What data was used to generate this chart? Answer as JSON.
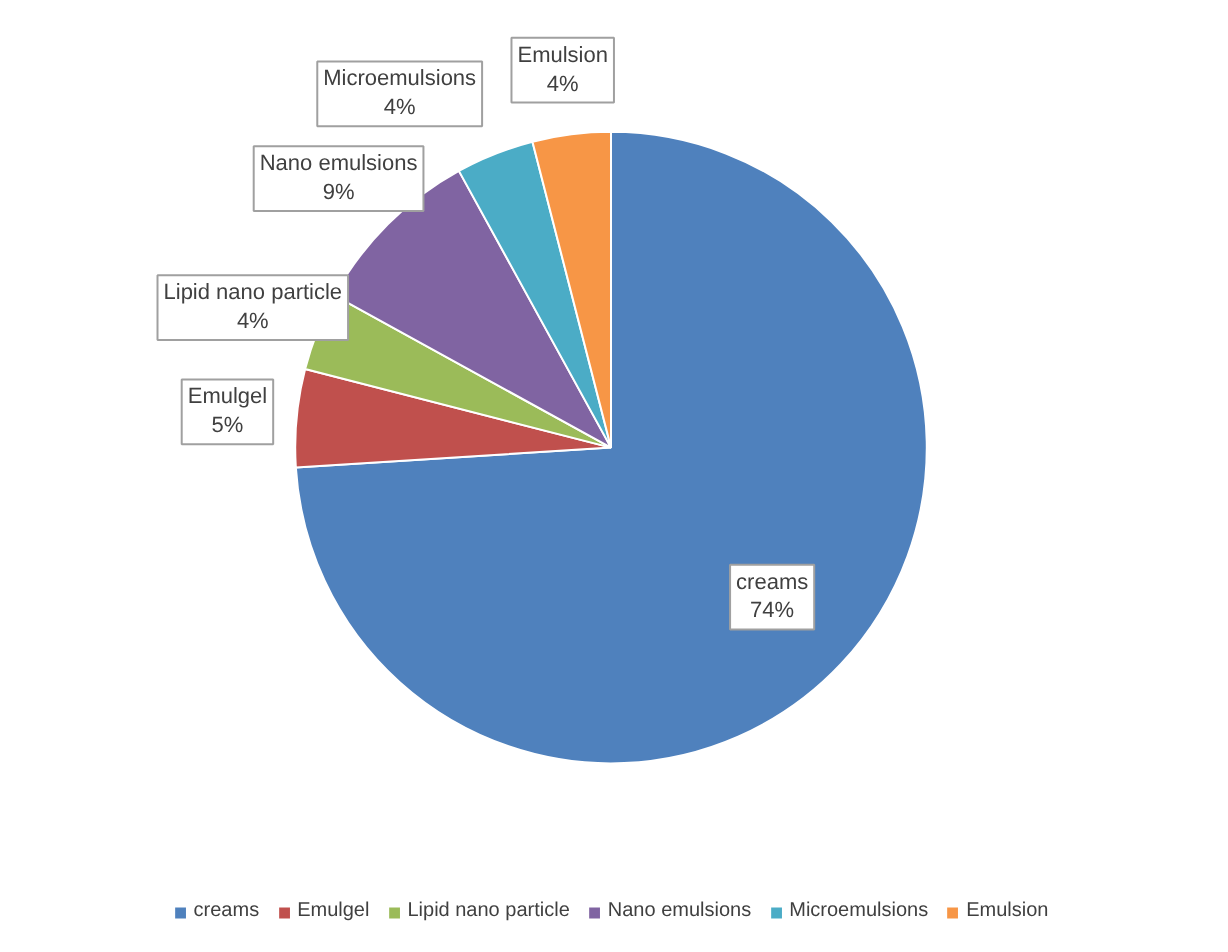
{
  "chart_data": {
    "type": "pie",
    "categories": [
      "creams",
      "Emulgel",
      "Lipid nano particle",
      "Nano emulsions",
      "Microemulsions",
      "Emulsion"
    ],
    "values": [
      74,
      5,
      4,
      9,
      4,
      4
    ],
    "value_labels": [
      "74%",
      "5%",
      "4%",
      "9%",
      "4%",
      "4%"
    ],
    "colors": [
      "#4f81bd",
      "#c0504d",
      "#9bbb59",
      "#8064a2",
      "#4bacc6",
      "#f79646"
    ],
    "legend": "bottom"
  }
}
